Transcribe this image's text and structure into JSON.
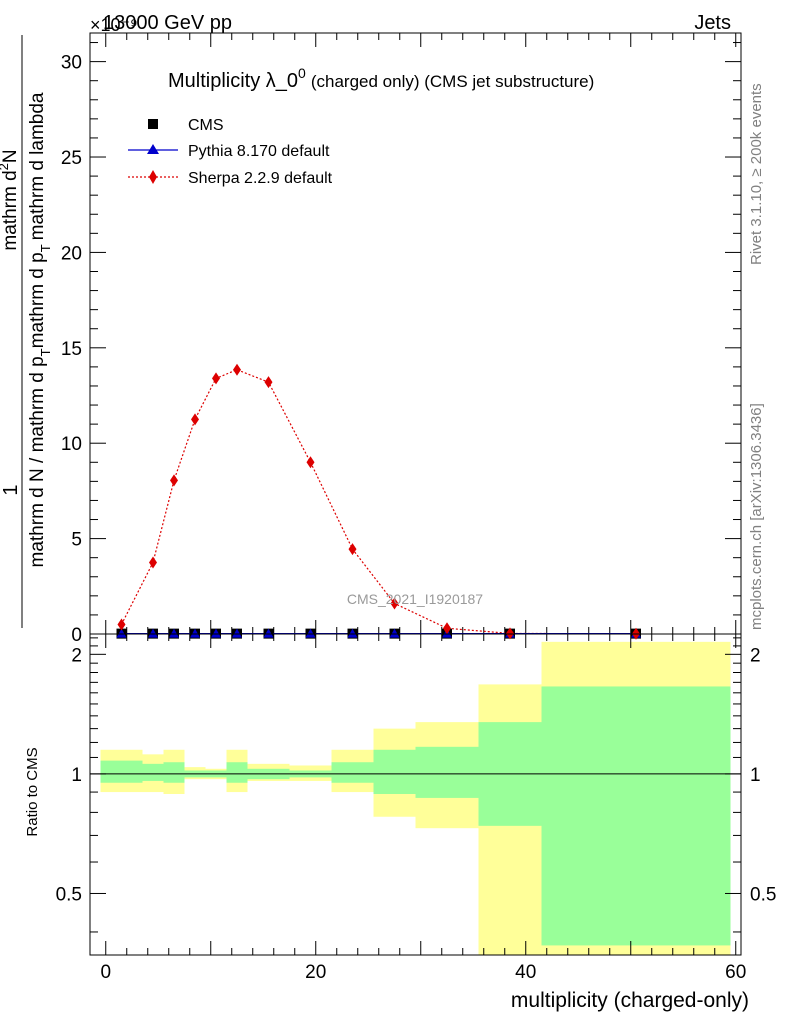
{
  "header": {
    "left": "13000 GeV pp",
    "right": "Jets",
    "exponent": "×10⁻⁹"
  },
  "side": {
    "rivet": "Rivet 3.1.10, ≥ 200k events",
    "mcplots": "mcplots.cern.ch [arXiv:1306.3436]"
  },
  "chart_data": [
    {
      "panel": "main",
      "type": "scatter",
      "title": "Multiplicity λ_0⁰ (charged only) (CMS jet substructure)",
      "title_main": "Multiplicity λ_0",
      "title_sup": "0",
      "title_sub": "(charged only) (CMS jet substructure)",
      "ylabel": "1 / mathrm d N / mathrm d p_T mathrm d p_T mathrm d lambda · mathrm d²N",
      "ylabel_num": "mathrm d²N",
      "ylabel_den": "mathrm d p_T mathrm d p_T mathrm d lambda",
      "ylabel_frac_num": "1",
      "ylabel_frac_den": "mathrm d N / mathrm d p_T mathrm d p_T mathrm d lambda",
      "ylabel_parts": {
        "one": "1",
        "denom": "mathrm d N / mathrm d p",
        "t1": "T",
        "mid": "mathrm d p",
        "t2": "T",
        "lam": "mathrm d lambda",
        "num": "mathrm d",
        "sup2": "2",
        "numN": "N"
      },
      "watermark": "CMS_2021_I1920187",
      "ylim": [
        0,
        31.5
      ],
      "yscale_note": "×10⁻⁹",
      "yticks": [
        "0",
        "5",
        "10",
        "15",
        "20",
        "25",
        "30"
      ],
      "ytick_values": [
        0,
        5,
        10,
        15,
        20,
        25,
        30
      ],
      "legend": [
        {
          "name": "CMS",
          "marker": "square",
          "color": "#000000"
        },
        {
          "name": "Pythia 8.170 default",
          "marker": "triangle",
          "color": "#0000cc"
        },
        {
          "name": "Sherpa 2.2.9 default",
          "marker": "diamond",
          "color": "#dd0000"
        }
      ],
      "series": [
        {
          "name": "CMS",
          "x": [
            1.5,
            4.5,
            6.5,
            8.5,
            10.5,
            12.5,
            15.5,
            19.5,
            23.5,
            27.5,
            32.5,
            38.5,
            50.5
          ],
          "y": [
            0.02,
            0.02,
            0.02,
            0.02,
            0.02,
            0.02,
            0.02,
            0.02,
            0.02,
            0.02,
            0.02,
            0.02,
            0.02
          ]
        },
        {
          "name": "Pythia 8.170 default",
          "x": [
            1.5,
            4.5,
            6.5,
            8.5,
            10.5,
            12.5,
            15.5,
            19.5,
            23.5,
            27.5,
            32.5,
            38.5,
            50.5
          ],
          "y": [
            0.02,
            0.02,
            0.02,
            0.02,
            0.02,
            0.02,
            0.02,
            0.02,
            0.02,
            0.02,
            0.02,
            0.02,
            0.02
          ]
        },
        {
          "name": "Sherpa 2.2.9 default",
          "x": [
            1.5,
            4.5,
            6.5,
            8.5,
            10.5,
            12.5,
            15.5,
            19.5,
            23.5,
            27.5,
            32.5,
            38.5,
            50.5
          ],
          "y": [
            0.5,
            3.75,
            8.05,
            11.25,
            13.4,
            13.85,
            13.2,
            9.0,
            4.45,
            1.6,
            0.3,
            0.03,
            0.01
          ]
        }
      ]
    },
    {
      "panel": "ratio",
      "type": "area",
      "ylabel": "Ratio to CMS",
      "xlabel": "multiplicity (charged-only)",
      "xlim": [
        -1.5,
        60.5
      ],
      "ylim": [
        0.35,
        2.25
      ],
      "yscale": "log",
      "xticks": [
        "0",
        "20",
        "40",
        "60"
      ],
      "xtick_values": [
        0,
        20,
        40,
        60
      ],
      "yticks": [
        "0.5",
        "1",
        "2"
      ],
      "ytick_values": [
        0.5,
        1,
        2
      ],
      "reference": 1,
      "bins": [
        {
          "x0": -0.5,
          "x1": 3.5,
          "g_lo": 0.95,
          "g_hi": 1.08,
          "y_lo": 0.9,
          "y_hi": 1.15
        },
        {
          "x0": 3.5,
          "x1": 5.5,
          "g_lo": 0.96,
          "g_hi": 1.06,
          "y_lo": 0.9,
          "y_hi": 1.12
        },
        {
          "x0": 5.5,
          "x1": 7.5,
          "g_lo": 0.95,
          "g_hi": 1.07,
          "y_lo": 0.89,
          "y_hi": 1.15
        },
        {
          "x0": 7.5,
          "x1": 9.5,
          "g_lo": 0.98,
          "g_hi": 1.02,
          "y_lo": 0.97,
          "y_hi": 1.04
        },
        {
          "x0": 9.5,
          "x1": 11.5,
          "g_lo": 0.98,
          "g_hi": 1.02,
          "y_lo": 0.97,
          "y_hi": 1.03
        },
        {
          "x0": 11.5,
          "x1": 13.5,
          "g_lo": 0.95,
          "g_hi": 1.07,
          "y_lo": 0.9,
          "y_hi": 1.15
        },
        {
          "x0": 13.5,
          "x1": 17.5,
          "g_lo": 0.97,
          "g_hi": 1.03,
          "y_lo": 0.96,
          "y_hi": 1.06
        },
        {
          "x0": 17.5,
          "x1": 21.5,
          "g_lo": 0.98,
          "g_hi": 1.02,
          "y_lo": 0.96,
          "y_hi": 1.05
        },
        {
          "x0": 21.5,
          "x1": 25.5,
          "g_lo": 0.95,
          "g_hi": 1.07,
          "y_lo": 0.9,
          "y_hi": 1.15
        },
        {
          "x0": 25.5,
          "x1": 29.5,
          "g_lo": 0.89,
          "g_hi": 1.15,
          "y_lo": 0.78,
          "y_hi": 1.3
        },
        {
          "x0": 29.5,
          "x1": 35.5,
          "g_lo": 0.87,
          "g_hi": 1.17,
          "y_lo": 0.73,
          "y_hi": 1.35
        },
        {
          "x0": 35.5,
          "x1": 41.5,
          "g_lo": 0.74,
          "g_hi": 1.35,
          "y_lo": 0.35,
          "y_hi": 1.68
        },
        {
          "x0": 41.5,
          "x1": 59.5,
          "g_lo": 0.37,
          "g_hi": 1.66,
          "y_lo": 0.35,
          "y_hi": 2.15
        }
      ],
      "band_colors": {
        "inner": "#99ff99",
        "outer": "#ffff99"
      }
    }
  ]
}
